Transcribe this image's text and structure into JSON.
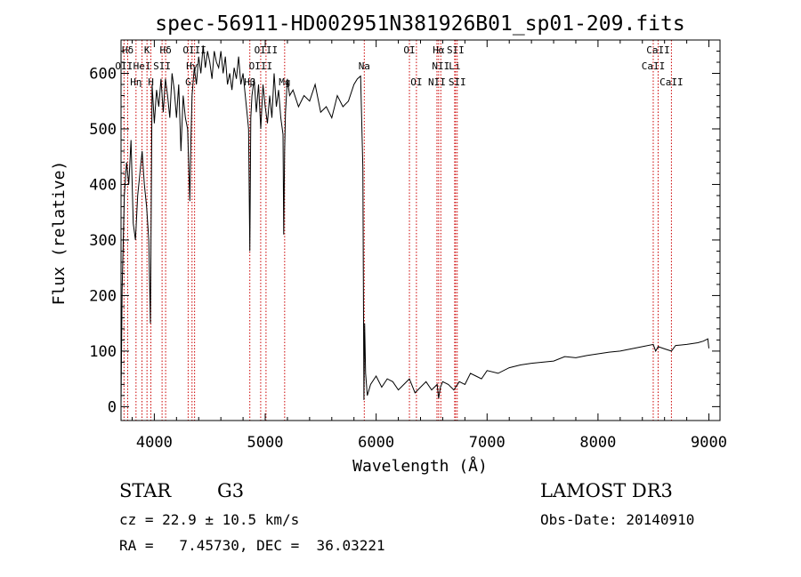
{
  "chart_data": {
    "type": "line",
    "title": "spec-56911-HD002951N381926B01_sp01-209.fits",
    "xlabel": "Wavelength (Å)",
    "ylabel": "Flux (relative)",
    "xlim": [
      3700,
      9100
    ],
    "ylim": [
      -25,
      660
    ],
    "x_ticks": [
      4000,
      5000,
      6000,
      7000,
      8000,
      9000
    ],
    "y_ticks": [
      0,
      100,
      200,
      300,
      400,
      500,
      600
    ],
    "x_tick_labels": [
      "4000",
      "5000",
      "6000",
      "7000",
      "8000",
      "9000"
    ],
    "y_tick_labels": [
      "0",
      "100",
      "200",
      "300",
      "400",
      "500",
      "600"
    ],
    "series": [
      {
        "name": "flux",
        "x": [
          3700,
          3710,
          3730,
          3750,
          3770,
          3790,
          3810,
          3830,
          3850,
          3870,
          3890,
          3910,
          3930,
          3950,
          3965,
          3980,
          4000,
          4020,
          4040,
          4060,
          4080,
          4100,
          4120,
          4140,
          4160,
          4180,
          4200,
          4220,
          4240,
          4260,
          4280,
          4300,
          4320,
          4330,
          4340,
          4360,
          4380,
          4400,
          4420,
          4440,
          4460,
          4480,
          4500,
          4520,
          4540,
          4560,
          4580,
          4600,
          4620,
          4640,
          4660,
          4680,
          4700,
          4720,
          4740,
          4760,
          4780,
          4800,
          4820,
          4840,
          4850,
          4861,
          4870,
          4880,
          4900,
          4920,
          4940,
          4960,
          4980,
          5000,
          5020,
          5040,
          5060,
          5080,
          5100,
          5120,
          5140,
          5160,
          5167,
          5175,
          5183,
          5200,
          5220,
          5250,
          5300,
          5350,
          5400,
          5450,
          5500,
          5550,
          5600,
          5650,
          5700,
          5750,
          5800,
          5830,
          5860,
          5880,
          5890,
          5896,
          5905,
          5920,
          5950,
          6000,
          6050,
          6100,
          6150,
          6200,
          6250,
          6300,
          6350,
          6400,
          6450,
          6500,
          6550,
          6563,
          6580,
          6600,
          6650,
          6700,
          6750,
          6800,
          6850,
          6900,
          6950,
          7000,
          7100,
          7200,
          7300,
          7400,
          7500,
          7600,
          7700,
          7800,
          7900,
          8000,
          8100,
          8200,
          8300,
          8400,
          8498,
          8520,
          8542,
          8600,
          8662,
          8700,
          8800,
          8900,
          8950,
          8990,
          9000
        ],
        "values": [
          5,
          210,
          380,
          440,
          400,
          480,
          330,
          300,
          380,
          420,
          460,
          400,
          360,
          300,
          150,
          580,
          510,
          570,
          540,
          590,
          530,
          590,
          560,
          520,
          600,
          570,
          520,
          580,
          460,
          560,
          520,
          500,
          370,
          480,
          560,
          610,
          580,
          630,
          600,
          650,
          610,
          640,
          620,
          590,
          640,
          620,
          610,
          640,
          600,
          630,
          580,
          600,
          570,
          610,
          590,
          630,
          580,
          600,
          560,
          520,
          500,
          280,
          520,
          560,
          590,
          530,
          580,
          500,
          580,
          540,
          510,
          560,
          520,
          600,
          540,
          570,
          520,
          490,
          310,
          460,
          530,
          590,
          560,
          570,
          540,
          560,
          550,
          580,
          530,
          540,
          520,
          560,
          540,
          550,
          580,
          590,
          595,
          430,
          12,
          150,
          60,
          20,
          40,
          55,
          35,
          50,
          45,
          30,
          40,
          50,
          25,
          35,
          45,
          30,
          40,
          15,
          35,
          45,
          40,
          30,
          45,
          40,
          60,
          55,
          50,
          65,
          60,
          70,
          75,
          78,
          80,
          82,
          90,
          88,
          92,
          95,
          98,
          100,
          104,
          108,
          112,
          100,
          108,
          104,
          100,
          110,
          112,
          115,
          118,
          122,
          105
        ],
        "color": "#000000"
      }
    ],
    "line_markers": [
      {
        "label": "Hδ",
        "x": 3760,
        "row": 0
      },
      {
        "label": "OII",
        "x": 3727,
        "row": 1
      },
      {
        "label": "Hη",
        "x": 3835,
        "row": 2
      },
      {
        "label": "HeI",
        "x": 3889,
        "row": 1
      },
      {
        "label": "K",
        "x": 3934,
        "row": 0
      },
      {
        "label": "H",
        "x": 3969,
        "row": 2
      },
      {
        "label": "SII",
        "x": 4070,
        "row": 1
      },
      {
        "label": "Hδ",
        "x": 4102,
        "row": 0
      },
      {
        "label": "G",
        "x": 4305,
        "row": 2
      },
      {
        "label": "Hγ",
        "x": 4340,
        "row": 1
      },
      {
        "label": "OIII",
        "x": 4363,
        "row": 0
      },
      {
        "label": "Hβ",
        "x": 4861,
        "row": 2
      },
      {
        "label": "OIII",
        "x": 4959,
        "row": 1
      },
      {
        "label": "OIII",
        "x": 5007,
        "row": 0
      },
      {
        "label": "Mg",
        "x": 5175,
        "row": 2
      },
      {
        "label": "Na",
        "x": 5893,
        "row": 1
      },
      {
        "label": "OI",
        "x": 6300,
        "row": 0
      },
      {
        "label": "OI",
        "x": 6363,
        "row": 2
      },
      {
        "label": "NII",
        "x": 6548,
        "row": 2
      },
      {
        "label": "NII",
        "x": 6583,
        "row": 1
      },
      {
        "label": "Hα",
        "x": 6563,
        "row": 0
      },
      {
        "label": "Li",
        "x": 6708,
        "row": 1
      },
      {
        "label": "SII",
        "x": 6716,
        "row": 0
      },
      {
        "label": "SII",
        "x": 6731,
        "row": 2
      },
      {
        "label": "CaII",
        "x": 8498,
        "row": 1
      },
      {
        "label": "CaII",
        "x": 8542,
        "row": 0
      },
      {
        "label": "CaII",
        "x": 8662,
        "row": 2
      }
    ],
    "line_marker_color": "#cc0000"
  },
  "info": {
    "class_label": "STAR",
    "subclass": "G3",
    "survey": "LAMOST DR3",
    "cz_line": "cz = 22.9 ± 10.5 km/s",
    "obs_date_line": "Obs-Date: 20140910",
    "coord_line": "RA =   7.45730, DEC =  36.03221"
  }
}
